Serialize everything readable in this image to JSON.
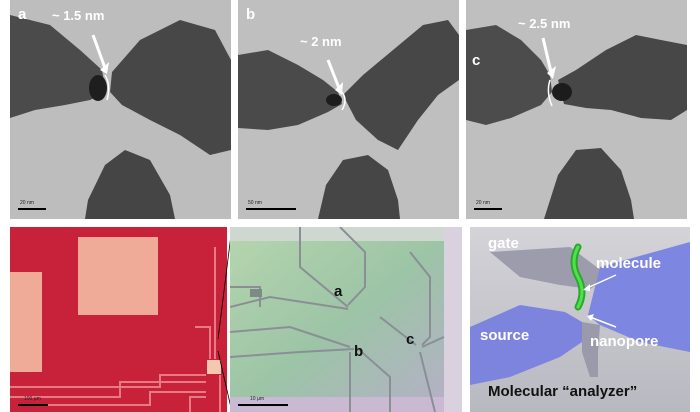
{
  "tem_panels": [
    {
      "letter": "a",
      "gap_label": "~ 1.5 nm",
      "scale_label": "20 nm"
    },
    {
      "letter": "b",
      "gap_label": "~ 2 nm",
      "scale_label": "50 nm"
    },
    {
      "letter": "c",
      "gap_label": "~ 2.5 nm",
      "scale_label": "20 nm"
    }
  ],
  "optical_low": {
    "scale_label": "100 µm"
  },
  "optical_high": {
    "scale_label": "10 µm",
    "markers": [
      "a",
      "b",
      "c"
    ]
  },
  "schematic": {
    "labels": {
      "gate": "gate",
      "molecule": "molecule",
      "source": "source",
      "nanopore": "nanopore",
      "caption": "Molecular “analyzer”"
    }
  },
  "colors": {
    "tem_background": "#bcbcbc",
    "electrode_dark": "#4a4a4a",
    "optical_red": "#c8223a",
    "pad_pink": "#f0aa98",
    "chip_green": "#a4c6a0",
    "schematic_blue": "#7d86e0",
    "molecule_green": "#33cc33"
  }
}
